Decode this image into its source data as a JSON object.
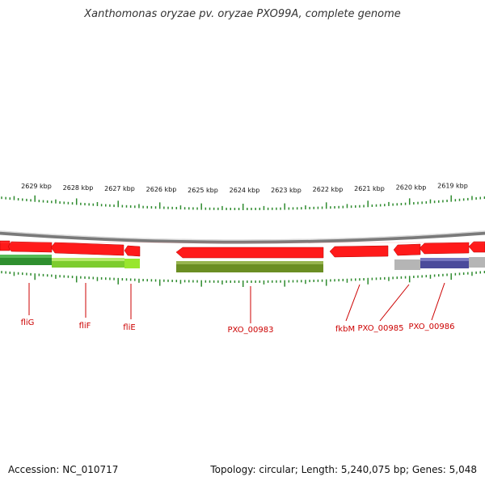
{
  "title": "Xanthomonas oryzae pv. oryzae PXO99A, complete genome",
  "footer": {
    "accession": "Accession: NC_010717",
    "summary": "Topology: circular; Length: 5,240,075 bp; Genes: 5,048"
  },
  "scale": {
    "unit": "kbp",
    "tick_labels": [
      "2629 kbp",
      "2628 kbp",
      "2627 kbp",
      "2626 kbp",
      "2625 kbp",
      "2624 kbp",
      "2623 kbp",
      "2622 kbp",
      "2621 kbp",
      "2620 kbp",
      "2619 kbp"
    ]
  },
  "genes": [
    {
      "label": "fliG",
      "color": "#cc2222"
    },
    {
      "label": "fliF",
      "color": "#cc2222"
    },
    {
      "label": "fliE",
      "color": "#cc2222"
    },
    {
      "label": "PXO_00983",
      "color": "#cc2222"
    },
    {
      "label": "fkbM",
      "color": "#cc2222"
    },
    {
      "label": "PXO_00985",
      "color": "#cc2222"
    },
    {
      "label": "PXO_00986",
      "color": "#cc2222"
    }
  ],
  "colors": {
    "cds": "#ff1a1a",
    "tick": "#2e8b2e",
    "backbone": "#8a8a8a",
    "label": "#cc0000"
  }
}
